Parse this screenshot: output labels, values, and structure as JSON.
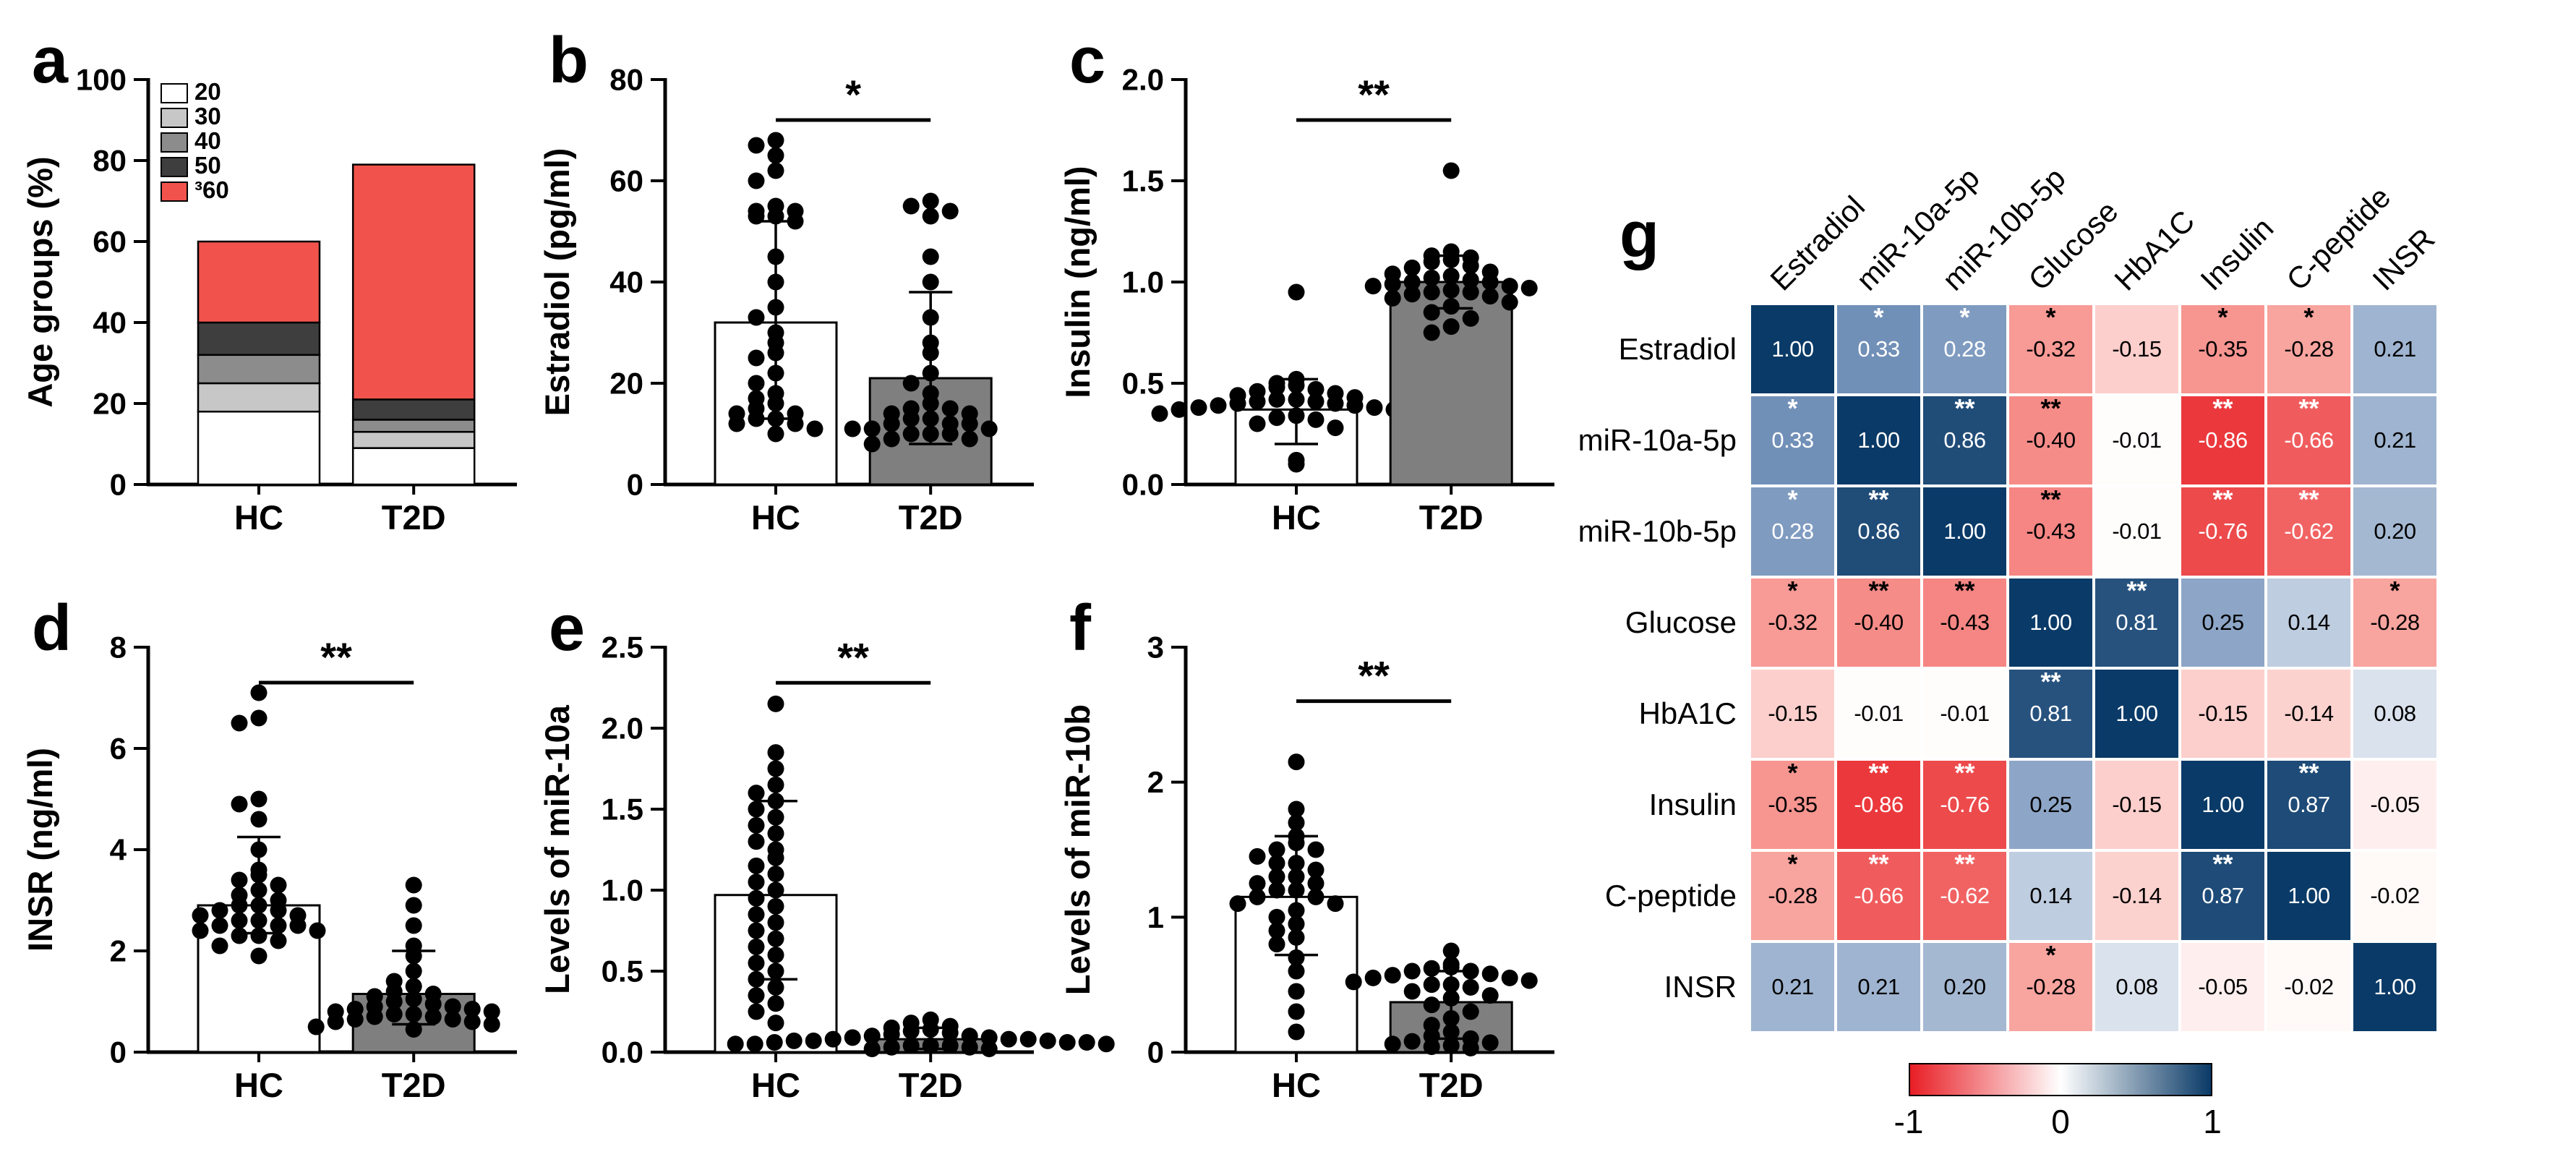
{
  "figure": {
    "background": "#ffffff",
    "panel_letters": [
      "a",
      "b",
      "c",
      "d",
      "e",
      "f",
      "g"
    ]
  },
  "chart_data": [
    {
      "id": "a",
      "type": "bar",
      "subtype": "stacked",
      "title": "",
      "ylabel": "Age groups (%)",
      "ylim": [
        0,
        100
      ],
      "ytick_values": [
        0,
        20,
        40,
        60,
        80,
        100
      ],
      "ytick_labels": [
        "0",
        "20",
        "40",
        "60",
        "80",
        "100"
      ],
      "categories": [
        "HC",
        "T2D"
      ],
      "legend_position": "top-left",
      "legend": [
        {
          "label": "20",
          "color": "#ffffff"
        },
        {
          "label": "30",
          "color": "#c7c7c7"
        },
        {
          "label": "40",
          "color": "#8c8c8c"
        },
        {
          "label": "50",
          "color": "#3e3e3e"
        },
        {
          "label": "³60",
          "color": "#f1534c"
        }
      ],
      "series": [
        {
          "name": "20",
          "color": "#ffffff",
          "values": [
            18,
            9
          ]
        },
        {
          "name": "30",
          "color": "#c7c7c7",
          "values": [
            7,
            4
          ]
        },
        {
          "name": "40",
          "color": "#8c8c8c",
          "values": [
            7,
            3
          ]
        },
        {
          "name": "50",
          "color": "#3e3e3e",
          "values": [
            8,
            5
          ]
        },
        {
          "name": "³60",
          "color": "#f1534c",
          "values": [
            20,
            58
          ]
        }
      ]
    },
    {
      "id": "b",
      "type": "scatter",
      "subtype": "bar-dot",
      "ylabel": "Estradiol (pg/ml)",
      "ylim": [
        0,
        80
      ],
      "ytick_values": [
        0,
        20,
        40,
        60,
        80
      ],
      "ytick_labels": [
        "0",
        "20",
        "40",
        "60",
        "80"
      ],
      "categories": [
        "HC",
        "T2D"
      ],
      "significance": "*",
      "sig_y": 72,
      "groups": [
        {
          "name": "HC",
          "bar_color": "#ffffff",
          "mean": 32,
          "whisker_low": 13,
          "whisker_high": 52,
          "points": [
            68,
            67,
            65,
            62,
            60,
            55,
            54,
            54,
            53,
            53,
            52,
            45,
            40,
            35,
            33,
            30,
            28,
            26,
            25,
            22,
            20,
            18,
            17,
            16,
            15,
            14,
            14,
            13,
            13,
            12,
            12,
            11,
            10
          ]
        },
        {
          "name": "T2D",
          "bar_color": "#7f7f7f",
          "mean": 21,
          "whisker_low": 8,
          "whisker_high": 38,
          "points": [
            56,
            55,
            54,
            53,
            45,
            40,
            33,
            28,
            26,
            22,
            20,
            18,
            16,
            15,
            15,
            14,
            14,
            13,
            13,
            12,
            12,
            12,
            11,
            11,
            11,
            10,
            10,
            10,
            9,
            9,
            8
          ]
        }
      ]
    },
    {
      "id": "c",
      "type": "scatter",
      "subtype": "bar-dot",
      "ylabel": "Insulin (ng/ml)",
      "ylim": [
        0,
        2.0
      ],
      "ytick_values": [
        0,
        0.5,
        1.0,
        1.5,
        2.0
      ],
      "ytick_labels": [
        "0.0",
        "0.5",
        "1.0",
        "1.5",
        "2.0"
      ],
      "categories": [
        "HC",
        "T2D"
      ],
      "significance": "**",
      "sig_y": 1.8,
      "groups": [
        {
          "name": "HC",
          "bar_color": "#ffffff",
          "mean": 0.37,
          "whisker_low": 0.2,
          "whisker_high": 0.52,
          "points": [
            0.95,
            0.52,
            0.5,
            0.49,
            0.48,
            0.47,
            0.46,
            0.45,
            0.44,
            0.43,
            0.42,
            0.42,
            0.41,
            0.41,
            0.4,
            0.4,
            0.39,
            0.39,
            0.38,
            0.38,
            0.37,
            0.37,
            0.36,
            0.35,
            0.34,
            0.33,
            0.32,
            0.3,
            0.28,
            0.12,
            0.1
          ]
        },
        {
          "name": "T2D",
          "bar_color": "#7f7f7f",
          "mean": 1.0,
          "whisker_low": 0.87,
          "whisker_high": 1.13,
          "points": [
            1.55,
            1.15,
            1.13,
            1.12,
            1.11,
            1.1,
            1.08,
            1.07,
            1.05,
            1.04,
            1.03,
            1.02,
            1.01,
            1.0,
            1.0,
            0.99,
            0.98,
            0.98,
            0.97,
            0.96,
            0.95,
            0.95,
            0.94,
            0.93,
            0.92,
            0.9,
            0.88,
            0.85,
            0.82,
            0.78,
            0.75
          ]
        }
      ]
    },
    {
      "id": "d",
      "type": "scatter",
      "subtype": "bar-dot",
      "ylabel": "INSR (ng/ml)",
      "ylim": [
        0,
        8
      ],
      "ytick_values": [
        0,
        2,
        4,
        6,
        8
      ],
      "ytick_labels": [
        "0",
        "2",
        "4",
        "6",
        "8"
      ],
      "categories": [
        "HC",
        "T2D"
      ],
      "significance": "**",
      "sig_y": 7.3,
      "groups": [
        {
          "name": "HC",
          "bar_color": "#ffffff",
          "mean": 2.9,
          "whisker_low": 2.35,
          "whisker_high": 4.25,
          "points": [
            7.1,
            6.6,
            6.5,
            5.0,
            4.9,
            4.6,
            4.0,
            3.6,
            3.5,
            3.4,
            3.3,
            3.2,
            3.1,
            3.0,
            2.9,
            2.9,
            2.8,
            2.8,
            2.7,
            2.7,
            2.6,
            2.6,
            2.5,
            2.5,
            2.5,
            2.4,
            2.4,
            2.3,
            2.3,
            2.2,
            2.1,
            1.9
          ]
        },
        {
          "name": "T2D",
          "bar_color": "#7f7f7f",
          "mean": 1.15,
          "whisker_low": 0.55,
          "whisker_high": 2.0,
          "points": [
            3.3,
            2.9,
            2.5,
            2.1,
            1.9,
            1.6,
            1.4,
            1.3,
            1.2,
            1.15,
            1.1,
            1.05,
            1.0,
            0.95,
            0.9,
            0.9,
            0.85,
            0.85,
            0.8,
            0.8,
            0.75,
            0.75,
            0.7,
            0.7,
            0.65,
            0.65,
            0.6,
            0.6,
            0.55,
            0.5,
            0.45
          ]
        }
      ]
    },
    {
      "id": "e",
      "type": "scatter",
      "subtype": "bar-dot",
      "ylabel": "Levels of miR-10a",
      "ylim": [
        0,
        2.5
      ],
      "ytick_values": [
        0,
        0.5,
        1.0,
        1.5,
        2.0,
        2.5
      ],
      "ytick_labels": [
        "0.0",
        "0.5",
        "1.0",
        "1.5",
        "2.0",
        "2.5"
      ],
      "categories": [
        "HC",
        "T2D"
      ],
      "significance": "**",
      "sig_y": 2.28,
      "groups": [
        {
          "name": "HC",
          "bar_color": "#ffffff",
          "mean": 0.97,
          "whisker_low": 0.45,
          "whisker_high": 1.55,
          "points": [
            2.15,
            1.85,
            1.75,
            1.65,
            1.6,
            1.55,
            1.5,
            1.45,
            1.4,
            1.35,
            1.3,
            1.25,
            1.2,
            1.15,
            1.1,
            1.05,
            1.0,
            0.95,
            0.9,
            0.85,
            0.8,
            0.75,
            0.7,
            0.65,
            0.6,
            0.55,
            0.5,
            0.45,
            0.4,
            0.35,
            0.3,
            0.25,
            0.18
          ]
        },
        {
          "name": "T2D",
          "bar_color": "#7f7f7f",
          "mean": 0.08,
          "whisker_low": 0.02,
          "whisker_high": 0.15,
          "points": [
            0.2,
            0.18,
            0.16,
            0.15,
            0.14,
            0.13,
            0.12,
            0.11,
            0.1,
            0.1,
            0.09,
            0.09,
            0.08,
            0.08,
            0.08,
            0.07,
            0.07,
            0.07,
            0.06,
            0.06,
            0.06,
            0.05,
            0.05,
            0.05,
            0.04,
            0.04,
            0.04,
            0.03,
            0.03,
            0.02,
            0.02
          ]
        }
      ]
    },
    {
      "id": "f",
      "type": "scatter",
      "subtype": "bar-dot",
      "ylabel": "Levels of miR-10b",
      "ylim": [
        0,
        3
      ],
      "ytick_values": [
        0,
        1,
        2,
        3
      ],
      "ytick_labels": [
        "0",
        "1",
        "2",
        "3"
      ],
      "categories": [
        "HC",
        "T2D"
      ],
      "significance": "**",
      "sig_y": 2.6,
      "groups": [
        {
          "name": "HC",
          "bar_color": "#ffffff",
          "mean": 1.15,
          "whisker_low": 0.72,
          "whisker_high": 1.6,
          "points": [
            2.15,
            1.8,
            1.7,
            1.6,
            1.55,
            1.5,
            1.5,
            1.45,
            1.4,
            1.4,
            1.35,
            1.3,
            1.3,
            1.25,
            1.25,
            1.2,
            1.2,
            1.15,
            1.15,
            1.1,
            1.1,
            1.05,
            1.0,
            0.95,
            0.9,
            0.85,
            0.8,
            0.7,
            0.6,
            0.45,
            0.3,
            0.15
          ]
        },
        {
          "name": "T2D",
          "bar_color": "#7f7f7f",
          "mean": 0.37,
          "whisker_low": 0.1,
          "whisker_high": 0.6,
          "points": [
            0.75,
            0.65,
            0.63,
            0.62,
            0.6,
            0.6,
            0.58,
            0.57,
            0.55,
            0.55,
            0.53,
            0.52,
            0.5,
            0.5,
            0.48,
            0.45,
            0.42,
            0.4,
            0.35,
            0.3,
            0.25,
            0.2,
            0.15,
            0.12,
            0.1,
            0.08,
            0.07,
            0.06,
            0.05,
            0.04,
            0.03
          ]
        }
      ]
    },
    {
      "id": "g",
      "type": "heatmap",
      "variables": [
        "Estradiol",
        "miR-10a-5p",
        "miR-10b-5p",
        "Glucose",
        "HbA1C",
        "Insulin",
        "C-peptide",
        "INSR"
      ],
      "matrix": [
        [
          1.0,
          0.33,
          0.28,
          -0.32,
          -0.15,
          -0.35,
          -0.28,
          0.21
        ],
        [
          0.33,
          1.0,
          0.86,
          -0.4,
          -0.01,
          -0.86,
          -0.66,
          0.21
        ],
        [
          0.28,
          0.86,
          1.0,
          -0.43,
          -0.01,
          -0.76,
          -0.62,
          0.2
        ],
        [
          -0.32,
          -0.4,
          -0.43,
          1.0,
          0.81,
          0.25,
          0.14,
          -0.28
        ],
        [
          -0.15,
          -0.01,
          -0.01,
          0.81,
          1.0,
          -0.15,
          -0.14,
          0.08
        ],
        [
          -0.35,
          -0.86,
          -0.76,
          0.25,
          -0.15,
          1.0,
          0.87,
          -0.05
        ],
        [
          -0.28,
          -0.66,
          -0.62,
          0.14,
          -0.14,
          0.87,
          1.0,
          -0.02
        ],
        [
          0.21,
          0.21,
          0.2,
          -0.28,
          0.08,
          -0.05,
          -0.02,
          1.0
        ]
      ],
      "stars": [
        [
          "",
          "*",
          "*",
          "*",
          "",
          "*",
          "*",
          ""
        ],
        [
          "*",
          "",
          "**",
          "**",
          "",
          "**",
          "**",
          ""
        ],
        [
          "*",
          "**",
          "",
          "**",
          "",
          "**",
          "**",
          ""
        ],
        [
          "*",
          "**",
          "**",
          "",
          "**",
          "",
          "",
          "*"
        ],
        [
          "",
          "",
          "",
          "**",
          "",
          "",
          "",
          ""
        ],
        [
          "*",
          "**",
          "**",
          "",
          "",
          "",
          "**",
          ""
        ],
        [
          "*",
          "**",
          "**",
          "",
          "",
          "**",
          "",
          ""
        ],
        [
          "",
          "",
          "",
          "*",
          "",
          "",
          "",
          ""
        ]
      ],
      "colorbar": {
        "ticks": [
          "-1",
          "0",
          "1"
        ],
        "min_color": "#e81e25",
        "mid_color": "#ffffff",
        "max_color": "#0a3a67"
      }
    }
  ]
}
